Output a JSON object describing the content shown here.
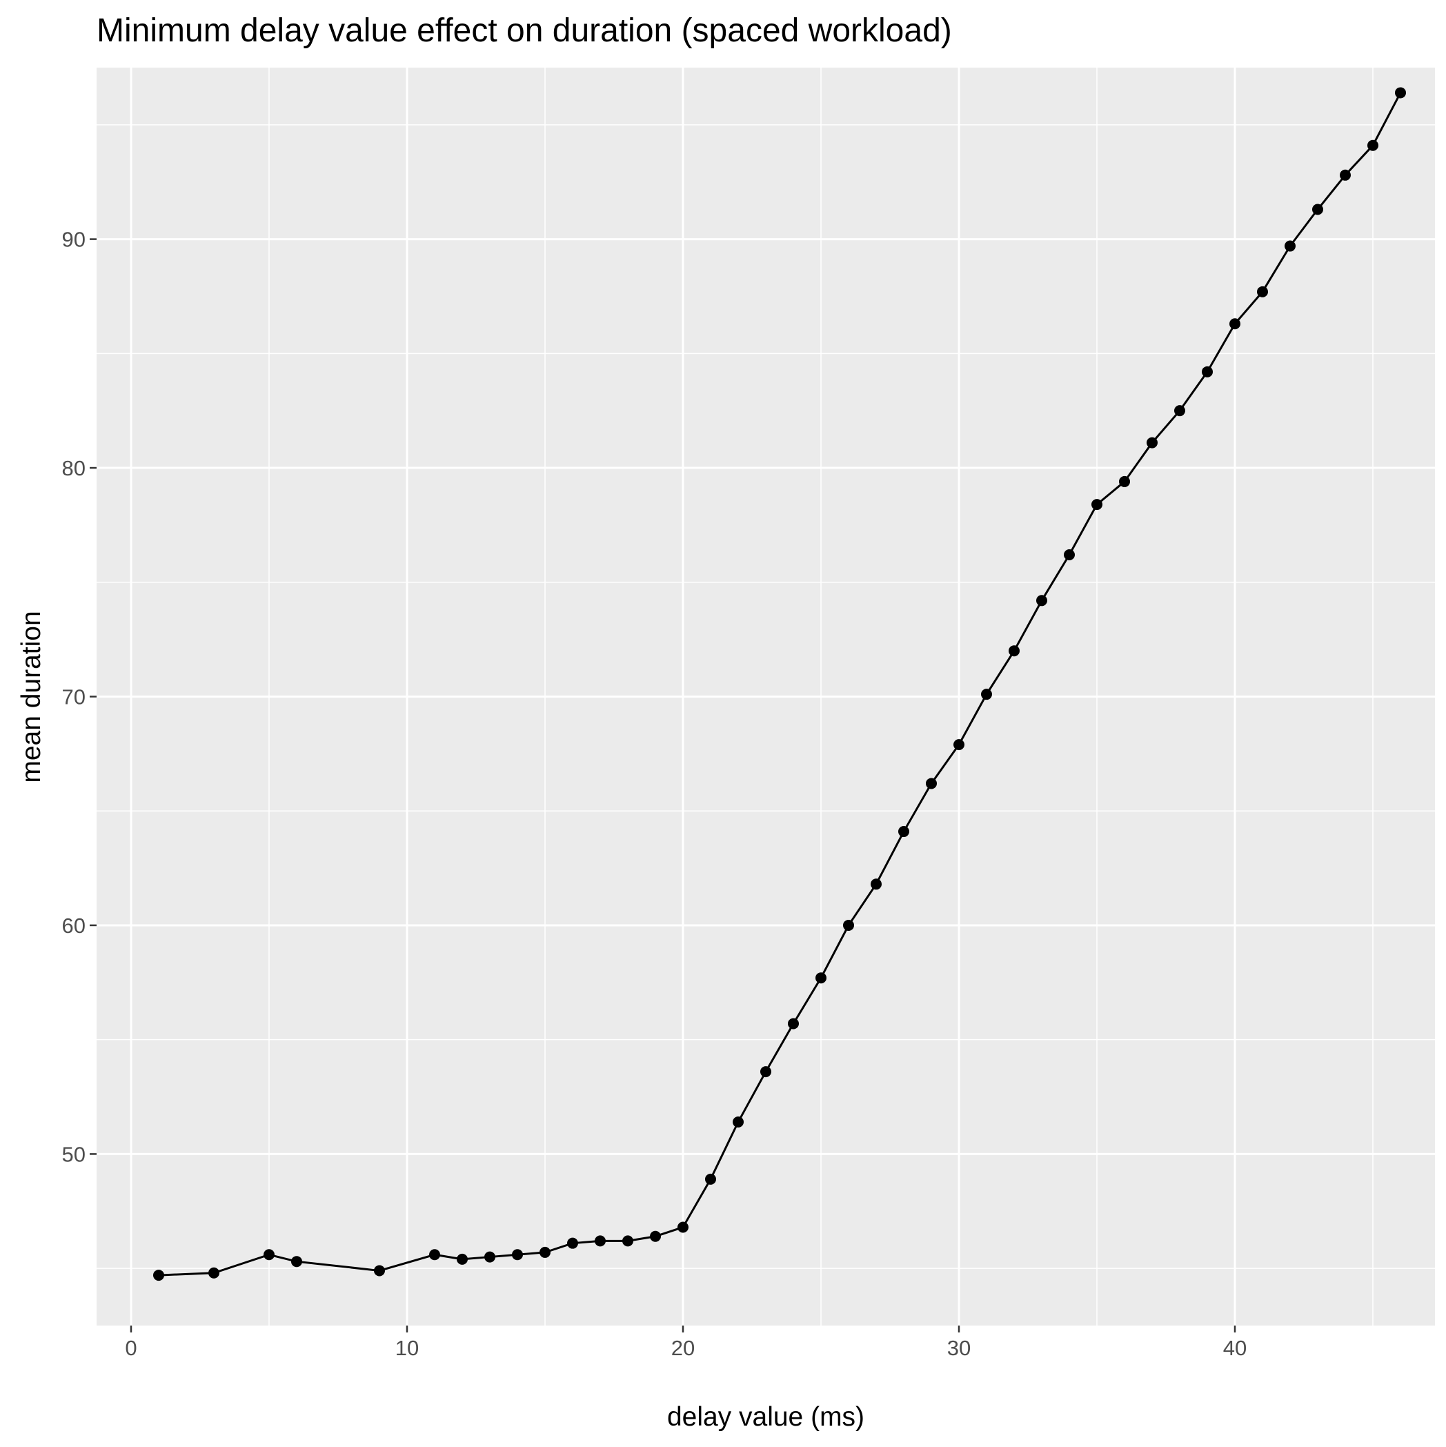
{
  "chart_data": {
    "type": "line",
    "title": "Minimum delay value effect on duration (spaced workload)",
    "xlabel": "delay value (ms)",
    "ylabel": "mean duration",
    "xlim": [
      -1.25,
      47.25
    ],
    "ylim": [
      42.5,
      97.5
    ],
    "xticks": [
      0,
      10,
      20,
      30,
      40
    ],
    "yticks": [
      50,
      60,
      70,
      80,
      90
    ],
    "grid": true,
    "background": "#ebebeb",
    "grid_color": "#ffffff",
    "line_color": "#000000",
    "point_color": "#000000",
    "series": [
      {
        "x": [
          1,
          3,
          5,
          6,
          9,
          11,
          12,
          13,
          14,
          15,
          16,
          17,
          18,
          19,
          20,
          21,
          22,
          23,
          24,
          25,
          26,
          27,
          28,
          29,
          30,
          31,
          32,
          33,
          34,
          35,
          36,
          37,
          38,
          39,
          40,
          41,
          42,
          43,
          44,
          45,
          46
        ],
        "y": [
          44.7,
          44.8,
          45.6,
          45.3,
          44.9,
          45.6,
          45.4,
          45.5,
          45.6,
          45.7,
          46.1,
          46.2,
          46.2,
          46.4,
          46.8,
          48.9,
          51.4,
          53.6,
          55.7,
          57.7,
          60.0,
          61.8,
          64.1,
          66.2,
          67.9,
          70.1,
          72.0,
          74.2,
          76.2,
          78.4,
          79.4,
          81.1,
          82.5,
          84.2,
          86.3,
          87.7,
          89.7,
          91.3,
          92.8,
          94.1,
          96.4
        ]
      }
    ]
  }
}
